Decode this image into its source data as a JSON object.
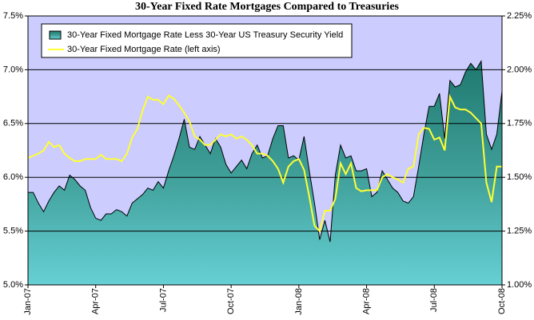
{
  "chart_data": {
    "type": "line",
    "title": "30-Year Fixed Rate Mortgages Compared to Treasuries",
    "categories": [
      "Jan-07",
      null,
      null,
      null,
      null,
      null,
      null,
      null,
      null,
      null,
      null,
      null,
      null,
      "Apr-07",
      null,
      null,
      null,
      null,
      null,
      null,
      null,
      null,
      null,
      null,
      null,
      null,
      "Jul-07",
      null,
      null,
      null,
      null,
      null,
      null,
      null,
      null,
      null,
      null,
      null,
      null,
      "Oct-07",
      null,
      null,
      null,
      null,
      null,
      null,
      null,
      null,
      null,
      null,
      null,
      null,
      "Jan-08",
      null,
      null,
      null,
      null,
      null,
      null,
      null,
      null,
      null,
      null,
      null,
      null,
      "Apr-08",
      null,
      null,
      null,
      null,
      null,
      null,
      null,
      null,
      null,
      null,
      null,
      null,
      "Jul-08",
      null,
      null,
      null,
      null,
      null,
      null,
      null,
      null,
      null,
      null,
      null,
      null,
      "Oct-08"
    ],
    "series": [
      {
        "name": "30-Year Fixed Mortgage Rate Less 30-Year US Treasury Security Yield",
        "type": "area",
        "axis": "y2",
        "color": "#2f8a80",
        "values": [
          1.43,
          1.43,
          1.38,
          1.34,
          1.39,
          1.43,
          1.46,
          1.44,
          1.51,
          1.49,
          1.46,
          1.44,
          1.36,
          1.31,
          1.3,
          1.33,
          1.33,
          1.35,
          1.34,
          1.32,
          1.38,
          1.4,
          1.42,
          1.45,
          1.44,
          1.48,
          1.45,
          1.53,
          1.6,
          1.68,
          1.77,
          1.64,
          1.63,
          1.69,
          1.65,
          1.61,
          1.68,
          1.64,
          1.56,
          1.52,
          1.55,
          1.58,
          1.54,
          1.61,
          1.65,
          1.59,
          1.6,
          1.68,
          1.74,
          1.74,
          1.59,
          1.6,
          1.58,
          1.69,
          1.53,
          1.38,
          1.21,
          1.3,
          1.2,
          1.51,
          1.65,
          1.59,
          1.6,
          1.53,
          1.53,
          1.54,
          1.41,
          1.43,
          1.53,
          1.49,
          1.45,
          1.43,
          1.39,
          1.38,
          1.41,
          1.55,
          1.7,
          1.83,
          1.83,
          1.89,
          1.68,
          1.95,
          1.92,
          1.93,
          1.99,
          2.03,
          2.0,
          2.04,
          1.7,
          1.63,
          1.7,
          1.9
        ]
      },
      {
        "name": "30-Year Fixed Mortgage Rate (left axis)",
        "type": "line",
        "color": "#ffff33",
        "values": [
          6.18,
          6.2,
          6.22,
          6.25,
          6.33,
          6.28,
          6.3,
          6.22,
          6.18,
          6.15,
          6.15,
          6.17,
          6.17,
          6.17,
          6.21,
          6.17,
          6.17,
          6.17,
          6.15,
          6.22,
          6.37,
          6.45,
          6.62,
          6.75,
          6.72,
          6.72,
          6.68,
          6.76,
          6.73,
          6.67,
          6.6,
          6.52,
          6.38,
          6.35,
          6.3,
          6.3,
          6.35,
          6.4,
          6.38,
          6.4,
          6.36,
          6.38,
          6.35,
          6.3,
          6.22,
          6.22,
          6.2,
          6.15,
          6.08,
          5.95,
          6.1,
          6.15,
          6.17,
          6.07,
          5.82,
          5.55,
          5.5,
          5.69,
          5.69,
          5.8,
          6.13,
          6.03,
          6.13,
          5.9,
          5.87,
          5.88,
          5.88,
          5.88,
          6.0,
          6.03,
          6.0,
          5.98,
          5.95,
          6.08,
          6.1,
          6.4,
          6.46,
          6.45,
          6.35,
          6.37,
          6.25,
          6.75,
          6.65,
          6.63,
          6.63,
          6.6,
          6.55,
          6.5,
          5.95,
          5.77,
          6.1,
          6.1
        ]
      }
    ],
    "ylim": [
      5.0,
      7.5
    ],
    "yticks": [
      {
        "value": 5.0,
        "label": "5.0%"
      },
      {
        "value": 5.5,
        "label": "5.5%"
      },
      {
        "value": 6.0,
        "label": "6.0%"
      },
      {
        "value": 6.5,
        "label": "6.5%"
      },
      {
        "value": 7.0,
        "label": "7.0%"
      },
      {
        "value": 7.5,
        "label": "7.5%"
      }
    ],
    "y2lim": [
      1.0,
      2.25
    ],
    "y2ticks": [
      {
        "value": 1.0,
        "label": "1.00%"
      },
      {
        "value": 1.25,
        "label": "1.25%"
      },
      {
        "value": 1.5,
        "label": "1.50%"
      },
      {
        "value": 1.75,
        "label": "1.75%"
      },
      {
        "value": 2.0,
        "label": "2.00%"
      },
      {
        "value": 2.25,
        "label": "2.25%"
      }
    ],
    "grid": true,
    "legend": "top-left",
    "background": "#ccccff"
  }
}
